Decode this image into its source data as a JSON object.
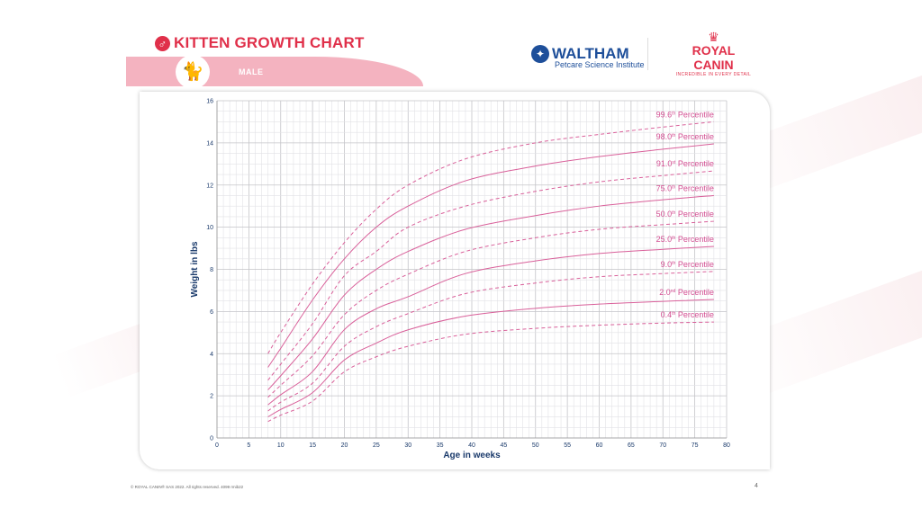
{
  "header": {
    "title": "KITTEN GROWTH CHART",
    "sex_label": "MALE",
    "icons": {
      "sex": "male-symbol-icon",
      "kitten": "cat-icon"
    }
  },
  "logos": {
    "waltham": {
      "name": "WALTHAM",
      "subtitle": "Petcare Science Institute"
    },
    "royal_canin": {
      "name": "ROYAL CANIN",
      "tagline": "INCREDIBLE IN EVERY DETAIL"
    }
  },
  "footer": {
    "copyright": "© ROYAL CANIN® SAS 2022. All rights reserved. 4099 rmib22",
    "page_number": "4"
  },
  "colors": {
    "accent": "#e0304a",
    "curve": "#d9609a",
    "label": "#d44f93",
    "axis_text": "#1a3a6b",
    "band": "#f4b3c0"
  },
  "chart_data": {
    "type": "line",
    "xlabel": "Age in weeks",
    "ylabel": "Weight in lbs",
    "xlim": [
      0,
      80
    ],
    "ylim": [
      0,
      16
    ],
    "xticks": [
      0,
      5,
      10,
      15,
      20,
      25,
      30,
      35,
      40,
      45,
      50,
      55,
      60,
      65,
      70,
      75,
      80
    ],
    "yticks": [
      0,
      2,
      4,
      6,
      8,
      10,
      12,
      14,
      16
    ],
    "grid": true,
    "x": [
      8,
      10,
      15,
      20,
      25,
      30,
      39,
      50,
      60,
      70,
      78
    ],
    "series": [
      {
        "name": "99.6th Percentile",
        "ord": "99.6",
        "sup": "th",
        "style": "dashed",
        "values": [
          4.0,
          5.0,
          7.3,
          9.27,
          10.85,
          12.0,
          13.24,
          14.0,
          14.4,
          14.75,
          15.0
        ]
      },
      {
        "name": "98.0th Percentile",
        "ord": "98.0",
        "sup": "th",
        "style": "solid",
        "values": [
          3.35,
          4.25,
          6.55,
          8.5,
          10.0,
          11.0,
          12.2,
          12.9,
          13.35,
          13.7,
          13.95
        ]
      },
      {
        "name": "91.0th Percentile",
        "ord": "91.0",
        "sup": "st",
        "style": "dashed",
        "values": [
          2.74,
          3.5,
          5.42,
          7.7,
          8.85,
          10.0,
          11.0,
          11.7,
          12.15,
          12.45,
          12.67
        ]
      },
      {
        "name": "75.0th Percentile",
        "ord": "75.0",
        "sup": "th",
        "style": "solid",
        "values": [
          2.28,
          2.95,
          4.7,
          6.78,
          8.0,
          8.85,
          9.9,
          10.55,
          11.0,
          11.3,
          11.5
        ]
      },
      {
        "name": "50.0th Percentile",
        "ord": "50.0",
        "sup": "th",
        "style": "dashed",
        "values": [
          1.93,
          2.5,
          3.9,
          5.85,
          7.0,
          7.77,
          8.85,
          9.5,
          9.9,
          10.12,
          10.28
        ]
      },
      {
        "name": "25.0th Percentile",
        "ord": "25.0",
        "sup": "th",
        "style": "solid",
        "values": [
          1.57,
          2.05,
          3.15,
          5.14,
          6.13,
          6.7,
          7.8,
          8.4,
          8.75,
          8.95,
          9.09
        ]
      },
      {
        "name": "9.0th Percentile",
        "ord": "9.0",
        "sup": "th",
        "style": "dashed",
        "values": [
          1.28,
          1.7,
          2.6,
          4.35,
          5.28,
          5.9,
          6.85,
          7.35,
          7.65,
          7.8,
          7.9
        ]
      },
      {
        "name": "2.0nd Percentile",
        "ord": "2.0",
        "sup": "nd",
        "style": "solid",
        "values": [
          1.0,
          1.35,
          2.15,
          3.7,
          4.5,
          5.13,
          5.78,
          6.15,
          6.35,
          6.48,
          6.57
        ]
      },
      {
        "name": "0.4th Percentile",
        "ord": "0.4",
        "sup": "th",
        "style": "dashed",
        "values": [
          0.78,
          1.08,
          1.75,
          3.14,
          3.85,
          4.35,
          4.92,
          5.2,
          5.35,
          5.45,
          5.5
        ]
      }
    ]
  }
}
